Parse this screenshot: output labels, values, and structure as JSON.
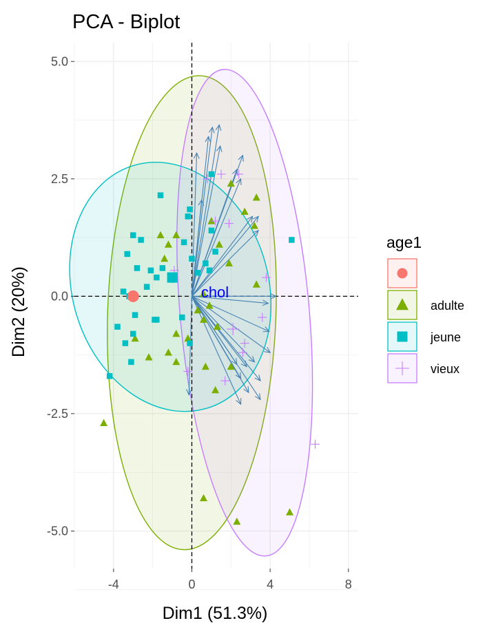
{
  "chart_data": {
    "type": "scatter",
    "title": "PCA - Biplot",
    "xlabel": "Dim1 (51.3%)",
    "ylabel": "Dim2 (20%)",
    "xlim": [
      -6,
      8.5
    ],
    "ylim": [
      -5.8,
      5.4
    ],
    "x_ticks": [
      -4,
      0,
      4,
      8
    ],
    "x_tick_labels": [
      "-4",
      "0",
      "4",
      "8"
    ],
    "y_ticks": [
      -5,
      -2.5,
      0,
      2.5,
      5
    ],
    "y_tick_labels": [
      "-5.0",
      "-2.5",
      "0.0",
      "2.5",
      "5.0"
    ],
    "grid": true,
    "reference_lines": {
      "x": 0,
      "y": 0,
      "style": "dashed"
    },
    "legend": {
      "title": "age1",
      "position": "right",
      "entries": [
        {
          "label": "",
          "shape": "circle",
          "color": "#F8766D"
        },
        {
          "label": "adulte",
          "shape": "triangle",
          "color": "#7CAE00"
        },
        {
          "label": "jeune",
          "shape": "square",
          "color": "#00BFC4"
        },
        {
          "label": "vieux",
          "shape": "plus",
          "color": "#C77CFF"
        }
      ]
    },
    "variable_label": "chol",
    "arrow_color": "#4682B4",
    "label_color": "#0000FF",
    "series": [
      {
        "name": "",
        "shape": "circle",
        "color": "#F8766D",
        "points": [],
        "centroid": [
          -3.0,
          0.0
        ]
      },
      {
        "name": "adulte",
        "shape": "triangle",
        "color": "#7CAE00",
        "points": [
          [
            2.0,
            2.4
          ],
          [
            3.3,
            2.1
          ],
          [
            2.7,
            1.8
          ],
          [
            3.2,
            1.5
          ],
          [
            1.0,
            1.6
          ],
          [
            -1.6,
            1.3
          ],
          [
            -1.2,
            1.1
          ],
          [
            -0.8,
            1.3
          ],
          [
            -1.4,
            0.8
          ],
          [
            1.4,
            1.1
          ],
          [
            1.9,
            0.7
          ],
          [
            3.3,
            0.25
          ],
          [
            0.6,
            0.05
          ],
          [
            0.9,
            -0.2
          ],
          [
            0.3,
            -0.3
          ],
          [
            0.6,
            -0.5
          ],
          [
            -2.9,
            -0.9
          ],
          [
            -0.8,
            -0.8
          ],
          [
            -1.2,
            -1.2
          ],
          [
            -0.2,
            -0.9
          ],
          [
            1.3,
            -0.65
          ],
          [
            0.7,
            -1.5
          ],
          [
            2.0,
            -1.5
          ],
          [
            -0.8,
            -1.4
          ],
          [
            -2.2,
            -1.3
          ],
          [
            1.2,
            -2.0
          ],
          [
            -4.5,
            -2.7
          ],
          [
            0.6,
            -4.3
          ],
          [
            2.3,
            -4.8
          ],
          [
            5.0,
            -4.6
          ]
        ],
        "ellipse": {
          "cx": 0.0,
          "cy": -0.35,
          "rx": 4.3,
          "ry": 5.05,
          "angle": -2
        }
      },
      {
        "name": "jeune",
        "shape": "square",
        "color": "#00BFC4",
        "points": [
          [
            1.0,
            2.6
          ],
          [
            -1.6,
            2.15
          ],
          [
            -0.1,
            1.85
          ],
          [
            -0.2,
            1.7
          ],
          [
            1.0,
            1.4
          ],
          [
            -3.0,
            1.3
          ],
          [
            -2.6,
            1.2
          ],
          [
            -0.4,
            1.15
          ],
          [
            1.2,
            0.95
          ],
          [
            -3.3,
            0.9
          ],
          [
            0.0,
            0.8
          ],
          [
            -1.5,
            0.6
          ],
          [
            0.3,
            0.5
          ],
          [
            0.7,
            0.7
          ],
          [
            0.9,
            0.55
          ],
          [
            5.1,
            1.2
          ],
          [
            -2.8,
            0.6
          ],
          [
            -2.1,
            0.55
          ],
          [
            -1.8,
            0.4
          ],
          [
            -2.3,
            0.2
          ],
          [
            -1.1,
            0.4
          ],
          [
            -3.2,
            0.0
          ],
          [
            -3.5,
            0.1
          ],
          [
            -2.9,
            -0.4
          ],
          [
            -1.8,
            -0.5
          ],
          [
            -1.9,
            -0.5
          ],
          [
            -0.5,
            -0.45
          ],
          [
            -3.0,
            -0.8
          ],
          [
            -3.8,
            -0.65
          ],
          [
            -3.4,
            -1.0
          ],
          [
            -3.1,
            -1.4
          ],
          [
            -0.1,
            -1.0
          ],
          [
            -4.2,
            -1.7
          ],
          [
            -1.0,
            0.35
          ]
        ],
        "centroid": [
          -1.0,
          0.4
        ],
        "ellipse": {
          "cx": -1.1,
          "cy": 0.2,
          "rx": 5.0,
          "ry": 2.7,
          "angle": 17
        }
      },
      {
        "name": "vieux",
        "shape": "plus",
        "color": "#C77CFF",
        "points": [
          [
            1.5,
            2.6
          ],
          [
            2.4,
            2.6
          ],
          [
            0.8,
            2.5
          ],
          [
            1.9,
            1.55
          ],
          [
            1.2,
            1.6
          ],
          [
            3.8,
            0.4
          ],
          [
            2.7,
            -1.0
          ],
          [
            3.6,
            -0.45
          ],
          [
            2.6,
            -1.2
          ],
          [
            -0.2,
            -1.6
          ],
          [
            1.7,
            -1.8
          ],
          [
            6.3,
            -3.15
          ],
          [
            -0.9,
            0.55
          ]
        ],
        "centroid": [
          2.1,
          -0.7
        ],
        "ellipse": {
          "cx": 2.7,
          "cy": -0.35,
          "rx": 3.3,
          "ry": 5.2,
          "angle": 5
        }
      }
    ],
    "arrows": [
      [
        1.4,
        3.65
      ],
      [
        1.05,
        3.6
      ],
      [
        0.85,
        3.4
      ],
      [
        0.25,
        3.05
      ],
      [
        1.45,
        3.2
      ],
      [
        2.6,
        3.0
      ],
      [
        2.3,
        2.7
      ],
      [
        2.5,
        2.5
      ],
      [
        0.5,
        2.05
      ],
      [
        3.1,
        1.7
      ],
      [
        3.4,
        1.7
      ],
      [
        3.4,
        1.4
      ],
      [
        4.3,
        0.0
      ],
      [
        3.9,
        -0.15
      ],
      [
        3.95,
        -0.75
      ],
      [
        4.0,
        -1.2
      ],
      [
        3.2,
        -1.4
      ],
      [
        2.8,
        -1.5
      ],
      [
        3.5,
        -1.8
      ],
      [
        2.3,
        -1.45
      ],
      [
        2.5,
        -1.75
      ],
      [
        2.9,
        -2.05
      ],
      [
        3.5,
        -2.2
      ],
      [
        2.5,
        -2.3
      ],
      [
        -0.15,
        -2.1
      ]
    ]
  }
}
